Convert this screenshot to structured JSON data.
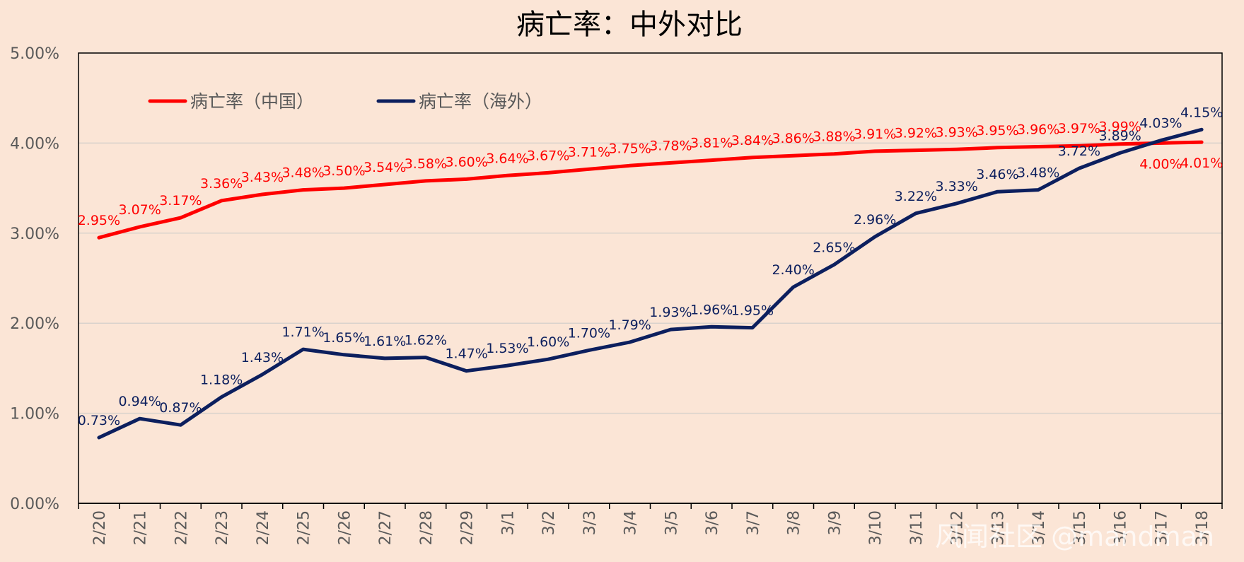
{
  "chart_data": {
    "type": "line",
    "title": "病亡率：中外对比",
    "categories": [
      "2/20",
      "2/21",
      "2/22",
      "2/23",
      "2/24",
      "2/25",
      "2/26",
      "2/27",
      "2/28",
      "2/29",
      "3/1",
      "3/2",
      "3/3",
      "3/4",
      "3/5",
      "3/6",
      "3/7",
      "3/8",
      "3/9",
      "3/10",
      "3/11",
      "3/12",
      "3/13",
      "3/14",
      "3/15",
      "3/16",
      "3/17",
      "3/18"
    ],
    "ylim": [
      0,
      5
    ],
    "yticks": [
      "0.00%",
      "1.00%",
      "2.00%",
      "3.00%",
      "4.00%",
      "5.00%"
    ],
    "xlabel": "",
    "ylabel": "",
    "grid": true,
    "legend_position": "top-left",
    "series": [
      {
        "name": "病亡率（中国）",
        "color": "#ff0000",
        "values": [
          2.95,
          3.07,
          3.17,
          3.36,
          3.43,
          3.48,
          3.5,
          3.54,
          3.58,
          3.6,
          3.64,
          3.67,
          3.71,
          3.75,
          3.78,
          3.81,
          3.84,
          3.86,
          3.88,
          3.91,
          3.92,
          3.93,
          3.95,
          3.96,
          3.97,
          3.99,
          4.0,
          4.01
        ],
        "labels": [
          "2.95%",
          "3.07%",
          "3.17%",
          "3.36%",
          "3.43%",
          "3.48%",
          "3.50%",
          "3.54%",
          "3.58%",
          "3.60%",
          "3.64%",
          "3.67%",
          "3.71%",
          "3.75%",
          "3.78%",
          "3.81%",
          "3.84%",
          "3.86%",
          "3.88%",
          "3.91%",
          "3.92%",
          "3.93%",
          "3.95%",
          "3.96%",
          "3.97%",
          "3.99%",
          "4.00%",
          "4.01%"
        ]
      },
      {
        "name": "病亡率（海外）",
        "color": "#0c1f5e",
        "values": [
          0.73,
          0.94,
          0.87,
          1.18,
          1.43,
          1.71,
          1.65,
          1.61,
          1.62,
          1.47,
          1.53,
          1.6,
          1.7,
          1.79,
          1.93,
          1.96,
          1.95,
          2.4,
          2.65,
          2.96,
          3.22,
          3.33,
          3.46,
          3.48,
          3.72,
          3.89,
          4.03,
          4.15
        ],
        "labels": [
          "0.73%",
          "0.94%",
          "0.87%",
          "1.18%",
          "1.43%",
          "1.71%",
          "1.65%",
          "1.61%",
          "1.62%",
          "1.47%",
          "1.53%",
          "1.60%",
          "1.70%",
          "1.79%",
          "1.93%",
          "1.96%",
          "1.95%",
          "2.40%",
          "2.65%",
          "2.96%",
          "3.22%",
          "3.33%",
          "3.46%",
          "3.48%",
          "3.72%",
          "3.89%",
          "4.03%",
          "4.15%"
        ]
      }
    ],
    "watermark": "风闻社区 @mandman"
  }
}
